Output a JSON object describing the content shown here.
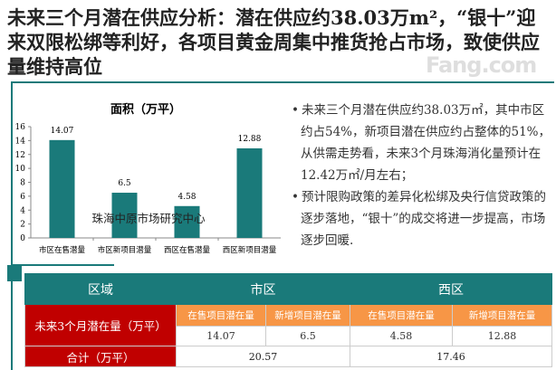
{
  "title": "未来三个月潜在供应分析：潜在供应约38.03万m²，“银十”迎来双限松绑等利好，各项目黄金周集中推货抢占市场，致使供应量维持高位",
  "bullets": [
    "未来三个月潜在供应约38.03万㎡，其中市区约占54%，新项目潜在供应约占整体的51%，从供需走势看，未来3个月珠海消化量预计在12.42万㎡/月左右；",
    "预计限购政策的差异化松绑及央行信贷政策的逐步落地，“银十”的成交将进一步提高，市场逐步回暖."
  ],
  "chart_data": {
    "type": "bar",
    "title": "面积（万平）",
    "categories": [
      "市区在售潜量",
      "市区新项目潜量",
      "西区在售潜量",
      "西区新项目潜量"
    ],
    "values": [
      14.07,
      6.5,
      4.58,
      12.88
    ],
    "value_labels": [
      "14.07",
      "6.5",
      "4.58",
      "12.88"
    ],
    "yticks": [
      "0",
      "2",
      "4",
      "6",
      "8",
      "10",
      "12",
      "14",
      "16"
    ],
    "ylim": [
      0,
      16
    ],
    "color": "#1a7a7a",
    "annotation": "珠海中原市场研究中心"
  },
  "table": {
    "header": [
      "区域",
      "市区",
      "西区"
    ],
    "row_label": "未来3个月潜在量（万平）",
    "subheaders": [
      "在售项目潜在量",
      "新增项目潜在量",
      "在售项目潜在量",
      "新增项目潜在量"
    ],
    "values": [
      "14.07",
      "6.5",
      "4.58",
      "12.88"
    ],
    "total_label": "合计（万平）",
    "totals": [
      "20.57",
      "17.46"
    ]
  },
  "watermark": "Fang.com"
}
